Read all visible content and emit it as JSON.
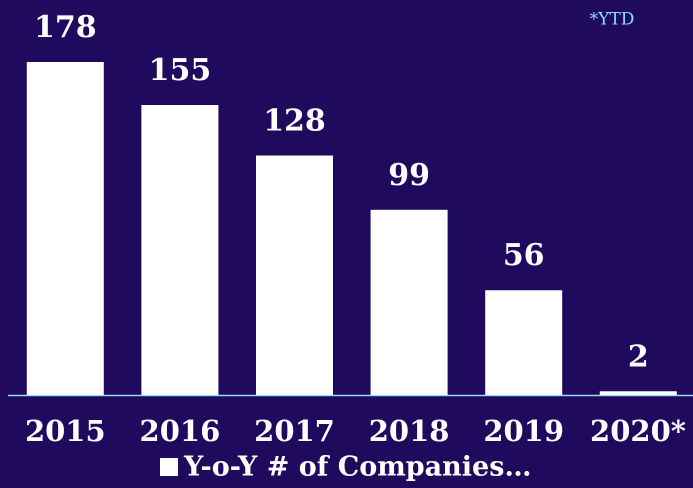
{
  "chart_data": {
    "type": "bar",
    "categories": [
      "2015",
      "2016",
      "2017",
      "2018",
      "2019",
      "2020*"
    ],
    "series": [
      {
        "name": "Y-o-Y # of Companies…",
        "color": "#ffffff",
        "values": [
          178,
          155,
          128,
          99,
          56,
          2
        ]
      }
    ],
    "annotation": "*YTD",
    "legend": "bottom"
  }
}
